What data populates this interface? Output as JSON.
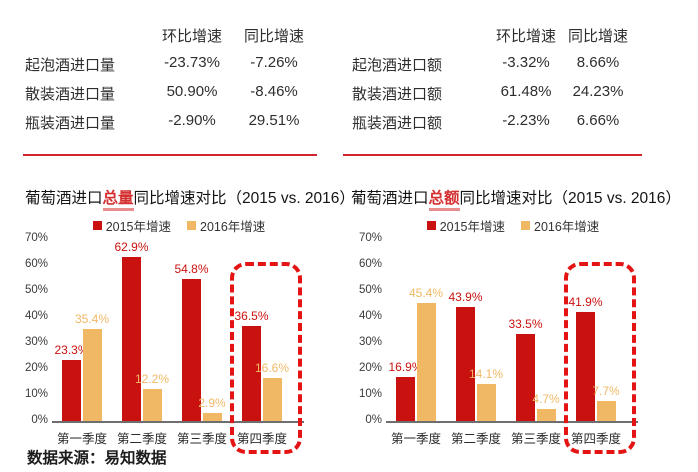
{
  "colors": {
    "series_2015": "#C9120F",
    "series_2016": "#F0B865",
    "divider": "#D2242C",
    "highlight_box": "#E41414",
    "title_highlight": "#D43030",
    "axis_line": "#6E6E6E"
  },
  "tables": {
    "left": {
      "headers": [
        "环比增速",
        "同比增速"
      ],
      "rows": [
        {
          "label": "起泡酒进口量",
          "values": [
            "-23.73%",
            "-7.26%"
          ]
        },
        {
          "label": "散装酒进口量",
          "values": [
            "50.90%",
            "-8.46%"
          ]
        },
        {
          "label": "瓶装酒进口量",
          "values": [
            "-2.90%",
            "29.51%"
          ]
        }
      ]
    },
    "right": {
      "headers": [
        "环比增速",
        "同比增速"
      ],
      "rows": [
        {
          "label": "起泡酒进口额",
          "values": [
            "-3.32%",
            "8.66%"
          ]
        },
        {
          "label": "散装酒进口额",
          "values": [
            "61.48%",
            "24.23%"
          ]
        },
        {
          "label": "瓶装酒进口额",
          "values": [
            "-2.23%",
            "6.66%"
          ]
        }
      ]
    }
  },
  "chart_data": [
    {
      "type": "bar",
      "title_prefix": "葡萄酒进口",
      "title_highlight": "总量",
      "title_suffix": "同比增速对比（2015 vs. 2016）",
      "categories": [
        "第一季度",
        "第二季度",
        "第三季度",
        "第四季度"
      ],
      "series": [
        {
          "name": "2015年增速",
          "color": "#C9120F",
          "values": [
            23.3,
            62.9,
            54.8,
            36.5
          ]
        },
        {
          "name": "2016年增速",
          "color": "#F0B865",
          "values": [
            35.4,
            12.2,
            2.9,
            16.6
          ]
        }
      ],
      "value_suffix": "%",
      "ylim": [
        0,
        70
      ],
      "ytick_step": 10,
      "grid": false,
      "legend_position": "top",
      "highlight_group": "第四季度"
    },
    {
      "type": "bar",
      "title_prefix": "葡萄酒进口",
      "title_highlight": "总额",
      "title_suffix": "同比增速对比（2015 vs. 2016）",
      "categories": [
        "第一季度",
        "第二季度",
        "第三季度",
        "第四季度"
      ],
      "series": [
        {
          "name": "2015年增速",
          "color": "#C9120F",
          "values": [
            16.9,
            43.9,
            33.5,
            41.9
          ]
        },
        {
          "name": "2016年增速",
          "color": "#F0B865",
          "values": [
            45.4,
            14.1,
            4.7,
            7.7
          ]
        }
      ],
      "value_suffix": "%",
      "ylim": [
        0,
        70
      ],
      "ytick_step": 10,
      "grid": false,
      "legend_position": "top",
      "highlight_group": "第四季度"
    }
  ],
  "source": "数据来源：易知数据"
}
